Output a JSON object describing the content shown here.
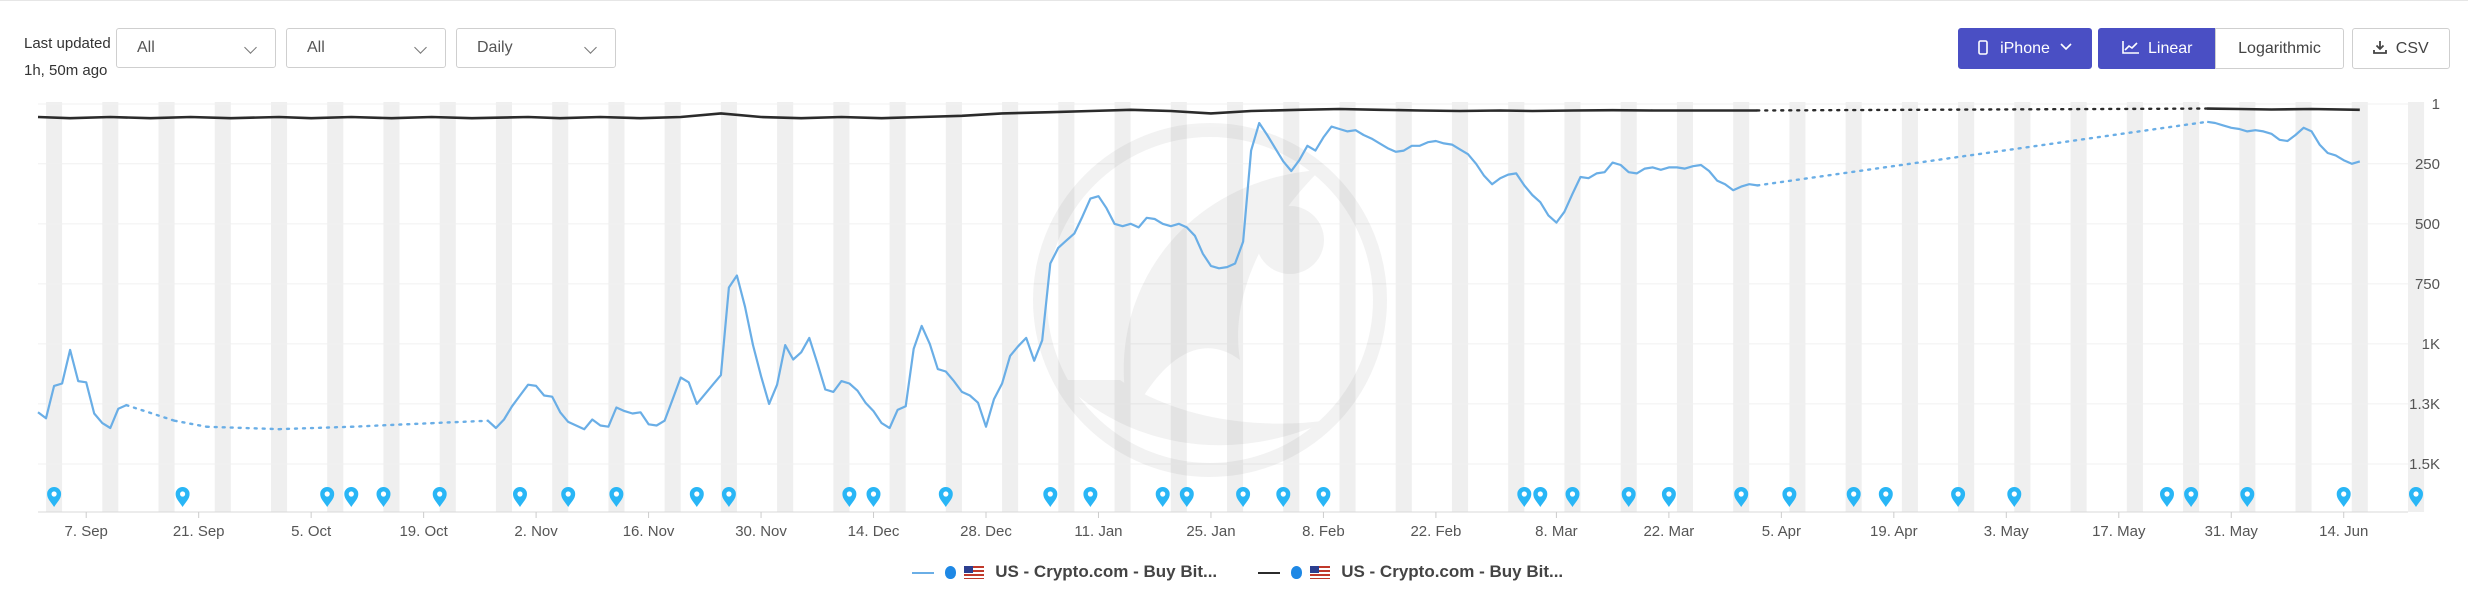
{
  "header": {
    "last_updated_line1": "Last updated",
    "last_updated_line2": "1h, 50m ago",
    "filters": [
      "All",
      "All",
      "Daily"
    ],
    "device_button": "iPhone",
    "scale_linear": "Linear",
    "scale_log": "Logarithmic",
    "csv": "CSV"
  },
  "colors": {
    "accent": "#4a4fc4",
    "series_blue": "#6aaee6",
    "series_dark": "#2b2b2b",
    "marker": "#29b6f6",
    "weekend_band": "#efefef"
  },
  "chart_data": {
    "type": "line",
    "x_type": "date",
    "x_range": [
      "2023-09-01",
      "2024-06-22"
    ],
    "y_range_rank": [
      1,
      1700
    ],
    "y_inverted": true,
    "y_ticks": [
      1,
      250,
      500,
      750,
      1000,
      1250,
      1500
    ],
    "y_tick_labels": [
      "1",
      "250",
      "500",
      "750",
      "1K",
      "1.3K",
      "1.5K"
    ],
    "x_tick_labels": [
      {
        "date": "2023-09-07",
        "label": "7. Sep"
      },
      {
        "date": "2023-09-21",
        "label": "21. Sep"
      },
      {
        "date": "2023-10-05",
        "label": "5. Oct"
      },
      {
        "date": "2023-10-19",
        "label": "19. Oct"
      },
      {
        "date": "2023-11-02",
        "label": "2. Nov"
      },
      {
        "date": "2023-11-16",
        "label": "16. Nov"
      },
      {
        "date": "2023-11-30",
        "label": "30. Nov"
      },
      {
        "date": "2023-12-14",
        "label": "14. Dec"
      },
      {
        "date": "2023-12-28",
        "label": "28. Dec"
      },
      {
        "date": "2024-01-11",
        "label": "11. Jan"
      },
      {
        "date": "2024-01-25",
        "label": "25. Jan"
      },
      {
        "date": "2024-02-08",
        "label": "8. Feb"
      },
      {
        "date": "2024-02-22",
        "label": "22. Feb"
      },
      {
        "date": "2024-03-08",
        "label": "8. Mar"
      },
      {
        "date": "2024-03-22",
        "label": "22. Mar"
      },
      {
        "date": "2024-04-05",
        "label": "5. Apr"
      },
      {
        "date": "2024-04-19",
        "label": "19. Apr"
      },
      {
        "date": "2024-05-03",
        "label": "3. May"
      },
      {
        "date": "2024-05-17",
        "label": "17. May"
      },
      {
        "date": "2024-05-31",
        "label": "31. May"
      },
      {
        "date": "2024-06-14",
        "label": "14. Jun"
      }
    ],
    "series": [
      {
        "name": "US - Crypto.com - Buy Bit...",
        "color": "#6aaee6",
        "points": [
          [
            "2023-09-01",
            1285
          ],
          [
            "2023-09-02",
            1310
          ],
          [
            "2023-09-03",
            1175
          ],
          [
            "2023-09-04",
            1165
          ],
          [
            "2023-09-05",
            1025
          ],
          [
            "2023-09-06",
            1155
          ],
          [
            "2023-09-07",
            1160
          ],
          [
            "2023-09-08",
            1290
          ],
          [
            "2023-09-09",
            1330
          ],
          [
            "2023-09-10",
            1350
          ],
          [
            "2023-09-11",
            1270
          ],
          [
            "2023-09-12",
            1255
          ],
          [
            "2023-09-18",
            1320
          ],
          [
            "2023-09-22",
            1345
          ],
          [
            "2023-10-01",
            1355
          ],
          [
            "2023-10-10",
            1345
          ],
          [
            "2023-10-20",
            1330
          ],
          [
            "2023-10-27",
            1320
          ],
          [
            "2023-10-28",
            1350
          ],
          [
            "2023-10-29",
            1315
          ],
          [
            "2023-10-30",
            1260
          ],
          [
            "2023-10-31",
            1215
          ],
          [
            "2023-11-01",
            1170
          ],
          [
            "2023-11-02",
            1175
          ],
          [
            "2023-11-03",
            1215
          ],
          [
            "2023-11-04",
            1220
          ],
          [
            "2023-11-05",
            1285
          ],
          [
            "2023-11-06",
            1325
          ],
          [
            "2023-11-08",
            1355
          ],
          [
            "2023-11-09",
            1315
          ],
          [
            "2023-11-10",
            1340
          ],
          [
            "2023-11-11",
            1345
          ],
          [
            "2023-11-12",
            1265
          ],
          [
            "2023-11-13",
            1280
          ],
          [
            "2023-11-14",
            1290
          ],
          [
            "2023-11-15",
            1285
          ],
          [
            "2023-11-16",
            1335
          ],
          [
            "2023-11-17",
            1340
          ],
          [
            "2023-11-18",
            1320
          ],
          [
            "2023-11-19",
            1230
          ],
          [
            "2023-11-20",
            1140
          ],
          [
            "2023-11-21",
            1160
          ],
          [
            "2023-11-22",
            1250
          ],
          [
            "2023-11-23",
            1210
          ],
          [
            "2023-11-24",
            1170
          ],
          [
            "2023-11-25",
            1130
          ],
          [
            "2023-11-26",
            765
          ],
          [
            "2023-11-27",
            715
          ],
          [
            "2023-11-28",
            845
          ],
          [
            "2023-11-29",
            1005
          ],
          [
            "2023-11-30",
            1135
          ],
          [
            "2023-12-01",
            1250
          ],
          [
            "2023-12-02",
            1170
          ],
          [
            "2023-12-03",
            1005
          ],
          [
            "2023-12-04",
            1065
          ],
          [
            "2023-12-05",
            1035
          ],
          [
            "2023-12-06",
            975
          ],
          [
            "2023-12-07",
            1080
          ],
          [
            "2023-12-08",
            1190
          ],
          [
            "2023-12-09",
            1200
          ],
          [
            "2023-12-10",
            1155
          ],
          [
            "2023-12-11",
            1165
          ],
          [
            "2023-12-12",
            1195
          ],
          [
            "2023-12-13",
            1245
          ],
          [
            "2023-12-14",
            1280
          ],
          [
            "2023-12-15",
            1330
          ],
          [
            "2023-12-16",
            1350
          ],
          [
            "2023-12-17",
            1275
          ],
          [
            "2023-12-18",
            1260
          ],
          [
            "2023-12-19",
            1020
          ],
          [
            "2023-12-20",
            925
          ],
          [
            "2023-12-21",
            1000
          ],
          [
            "2023-12-22",
            1105
          ],
          [
            "2023-12-23",
            1115
          ],
          [
            "2023-12-24",
            1155
          ],
          [
            "2023-12-25",
            1200
          ],
          [
            "2023-12-26",
            1215
          ],
          [
            "2023-12-27",
            1245
          ],
          [
            "2023-12-28",
            1345
          ],
          [
            "2023-12-29",
            1230
          ],
          [
            "2023-12-30",
            1165
          ],
          [
            "2023-12-31",
            1050
          ],
          [
            "2024-01-01",
            1010
          ],
          [
            "2024-01-02",
            975
          ],
          [
            "2024-01-03",
            1070
          ],
          [
            "2024-01-04",
            985
          ],
          [
            "2024-01-05",
            665
          ],
          [
            "2024-01-06",
            600
          ],
          [
            "2024-01-07",
            570
          ],
          [
            "2024-01-08",
            540
          ],
          [
            "2024-01-09",
            470
          ],
          [
            "2024-01-10",
            395
          ],
          [
            "2024-01-11",
            385
          ],
          [
            "2024-01-12",
            435
          ],
          [
            "2024-01-13",
            500
          ],
          [
            "2024-01-14",
            510
          ],
          [
            "2024-01-15",
            500
          ],
          [
            "2024-01-16",
            515
          ],
          [
            "2024-01-17",
            475
          ],
          [
            "2024-01-18",
            480
          ],
          [
            "2024-01-19",
            500
          ],
          [
            "2024-01-20",
            510
          ],
          [
            "2024-01-21",
            500
          ],
          [
            "2024-01-22",
            515
          ],
          [
            "2024-01-23",
            550
          ],
          [
            "2024-01-24",
            625
          ],
          [
            "2024-01-25",
            675
          ],
          [
            "2024-01-26",
            685
          ],
          [
            "2024-01-27",
            680
          ],
          [
            "2024-01-28",
            665
          ],
          [
            "2024-01-29",
            575
          ],
          [
            "2024-01-30",
            195
          ],
          [
            "2024-01-31",
            80
          ],
          [
            "2024-02-01",
            130
          ],
          [
            "2024-02-02",
            185
          ],
          [
            "2024-02-03",
            240
          ],
          [
            "2024-02-04",
            280
          ],
          [
            "2024-02-05",
            235
          ],
          [
            "2024-02-06",
            175
          ],
          [
            "2024-02-07",
            195
          ],
          [
            "2024-02-08",
            140
          ],
          [
            "2024-02-09",
            95
          ],
          [
            "2024-02-10",
            105
          ],
          [
            "2024-02-11",
            115
          ],
          [
            "2024-02-12",
            110
          ],
          [
            "2024-02-13",
            130
          ],
          [
            "2024-02-14",
            145
          ],
          [
            "2024-02-15",
            165
          ],
          [
            "2024-02-16",
            185
          ],
          [
            "2024-02-17",
            200
          ],
          [
            "2024-02-18",
            195
          ],
          [
            "2024-02-19",
            175
          ],
          [
            "2024-02-20",
            175
          ],
          [
            "2024-02-21",
            160
          ],
          [
            "2024-02-22",
            155
          ],
          [
            "2024-02-23",
            165
          ],
          [
            "2024-02-24",
            170
          ],
          [
            "2024-02-25",
            190
          ],
          [
            "2024-02-26",
            210
          ],
          [
            "2024-02-27",
            250
          ],
          [
            "2024-02-28",
            300
          ],
          [
            "2024-02-29",
            335
          ],
          [
            "2024-03-01",
            310
          ],
          [
            "2024-03-02",
            295
          ],
          [
            "2024-03-03",
            290
          ],
          [
            "2024-03-04",
            340
          ],
          [
            "2024-03-05",
            380
          ],
          [
            "2024-03-06",
            410
          ],
          [
            "2024-03-07",
            465
          ],
          [
            "2024-03-08",
            495
          ],
          [
            "2024-03-09",
            450
          ],
          [
            "2024-03-10",
            375
          ],
          [
            "2024-03-11",
            305
          ],
          [
            "2024-03-12",
            310
          ],
          [
            "2024-03-13",
            290
          ],
          [
            "2024-03-14",
            285
          ],
          [
            "2024-03-15",
            245
          ],
          [
            "2024-03-16",
            255
          ],
          [
            "2024-03-17",
            285
          ],
          [
            "2024-03-18",
            290
          ],
          [
            "2024-03-19",
            270
          ],
          [
            "2024-03-20",
            265
          ],
          [
            "2024-03-21",
            275
          ],
          [
            "2024-03-22",
            265
          ],
          [
            "2024-03-23",
            265
          ],
          [
            "2024-03-24",
            270
          ],
          [
            "2024-03-25",
            260
          ],
          [
            "2024-03-26",
            255
          ],
          [
            "2024-03-27",
            280
          ],
          [
            "2024-03-28",
            320
          ],
          [
            "2024-03-29",
            335
          ],
          [
            "2024-03-30",
            360
          ],
          [
            "2024-03-31",
            345
          ],
          [
            "2024-04-01",
            335
          ],
          [
            "2024-04-02",
            340
          ],
          [
            "2024-05-28",
            75
          ],
          [
            "2024-05-29",
            80
          ],
          [
            "2024-05-30",
            90
          ],
          [
            "2024-05-31",
            100
          ],
          [
            "2024-06-01",
            105
          ],
          [
            "2024-06-02",
            115
          ],
          [
            "2024-06-03",
            110
          ],
          [
            "2024-06-04",
            115
          ],
          [
            "2024-06-05",
            125
          ],
          [
            "2024-06-06",
            150
          ],
          [
            "2024-06-07",
            155
          ],
          [
            "2024-06-08",
            130
          ],
          [
            "2024-06-09",
            100
          ],
          [
            "2024-06-10",
            115
          ],
          [
            "2024-06-11",
            170
          ],
          [
            "2024-06-12",
            205
          ],
          [
            "2024-06-13",
            215
          ],
          [
            "2024-06-14",
            235
          ],
          [
            "2024-06-15",
            250
          ],
          [
            "2024-06-16",
            240
          ]
        ]
      },
      {
        "name": "US - Crypto.com - Buy Bit...",
        "color": "#2b2b2b",
        "points": [
          [
            "2023-09-01",
            55
          ],
          [
            "2023-09-05",
            60
          ],
          [
            "2023-09-10",
            55
          ],
          [
            "2023-09-15",
            60
          ],
          [
            "2023-09-20",
            55
          ],
          [
            "2023-09-25",
            60
          ],
          [
            "2023-10-01",
            55
          ],
          [
            "2023-10-05",
            60
          ],
          [
            "2023-10-10",
            55
          ],
          [
            "2023-10-15",
            60
          ],
          [
            "2023-10-20",
            55
          ],
          [
            "2023-10-25",
            60
          ],
          [
            "2023-11-01",
            55
          ],
          [
            "2023-11-05",
            60
          ],
          [
            "2023-11-10",
            55
          ],
          [
            "2023-11-15",
            60
          ],
          [
            "2023-11-20",
            55
          ],
          [
            "2023-11-25",
            40
          ],
          [
            "2023-11-30",
            55
          ],
          [
            "2023-12-05",
            60
          ],
          [
            "2023-12-10",
            55
          ],
          [
            "2023-12-15",
            60
          ],
          [
            "2023-12-20",
            55
          ],
          [
            "2023-12-25",
            50
          ],
          [
            "2023-12-30",
            40
          ],
          [
            "2024-01-05",
            35
          ],
          [
            "2024-01-10",
            30
          ],
          [
            "2024-01-15",
            25
          ],
          [
            "2024-01-20",
            30
          ],
          [
            "2024-01-25",
            40
          ],
          [
            "2024-01-30",
            30
          ],
          [
            "2024-02-05",
            25
          ],
          [
            "2024-02-10",
            22
          ],
          [
            "2024-02-15",
            25
          ],
          [
            "2024-02-20",
            28
          ],
          [
            "2024-02-25",
            30
          ],
          [
            "2024-03-01",
            28
          ],
          [
            "2024-03-05",
            30
          ],
          [
            "2024-03-10",
            28
          ],
          [
            "2024-03-15",
            27
          ],
          [
            "2024-03-20",
            28
          ],
          [
            "2024-03-25",
            28
          ],
          [
            "2024-04-02",
            28
          ],
          [
            "2024-05-28",
            20
          ],
          [
            "2024-06-01",
            22
          ],
          [
            "2024-06-05",
            24
          ],
          [
            "2024-06-10",
            22
          ],
          [
            "2024-06-16",
            25
          ]
        ],
        "gaps_dotted": true
      }
    ],
    "event_markers": [
      "2023-09-03",
      "2023-09-19",
      "2023-10-07",
      "2023-10-10",
      "2023-10-14",
      "2023-10-21",
      "2023-10-31",
      "2023-11-06",
      "2023-11-12",
      "2023-11-22",
      "2023-11-26",
      "2023-12-11",
      "2023-12-14",
      "2023-12-23",
      "2024-01-05",
      "2024-01-10",
      "2024-01-19",
      "2024-01-22",
      "2024-01-29",
      "2024-02-03",
      "2024-02-08",
      "2024-03-04",
      "2024-03-06",
      "2024-03-10",
      "2024-03-17",
      "2024-03-22",
      "2024-03-31",
      "2024-04-06",
      "2024-04-14",
      "2024-04-18",
      "2024-04-27",
      "2024-05-04",
      "2024-05-23",
      "2024-05-26",
      "2024-06-02",
      "2024-06-14",
      "2024-06-23"
    ],
    "weekend_bands": true,
    "legend_position": "bottom"
  },
  "legend": {
    "item1": "US - Crypto.com - Buy Bit...",
    "item2": "US - Crypto.com - Buy Bit..."
  }
}
